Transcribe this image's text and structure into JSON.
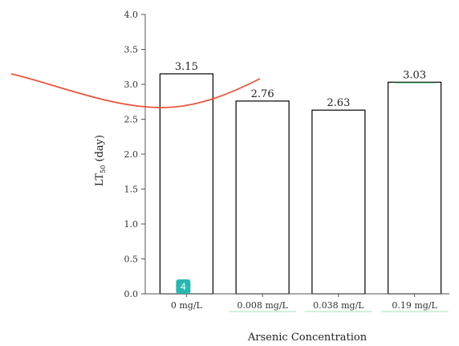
{
  "chart_data": {
    "type": "bar",
    "categories": [
      "0 mg/L",
      "0.008 mg/L",
      "0.038 mg/L",
      "0.19 mg/L"
    ],
    "values": [
      3.15,
      2.76,
      2.63,
      3.03
    ],
    "data_labels": [
      "3.15",
      "2.76",
      "2.63",
      "3.03"
    ],
    "xlabel": "Arsenic Concentration",
    "ylabel_main": "LT",
    "ylabel_sub": "50",
    "ylabel_unit": " (day)",
    "ylim": [
      0,
      4.0
    ],
    "yticks": [
      "0.0",
      "0.5",
      "1.0",
      "1.5",
      "2.0",
      "2.5",
      "3.0",
      "3.5",
      "4.0"
    ],
    "grid": false,
    "bar_fill": "#ffffff",
    "bar_stroke": "#000000",
    "overlay_curve_color": "#e8553b",
    "badge": {
      "text": "4",
      "color": "#2ab7b0",
      "category_index": 0
    },
    "category_highlight_color": "#7fd8a0"
  }
}
